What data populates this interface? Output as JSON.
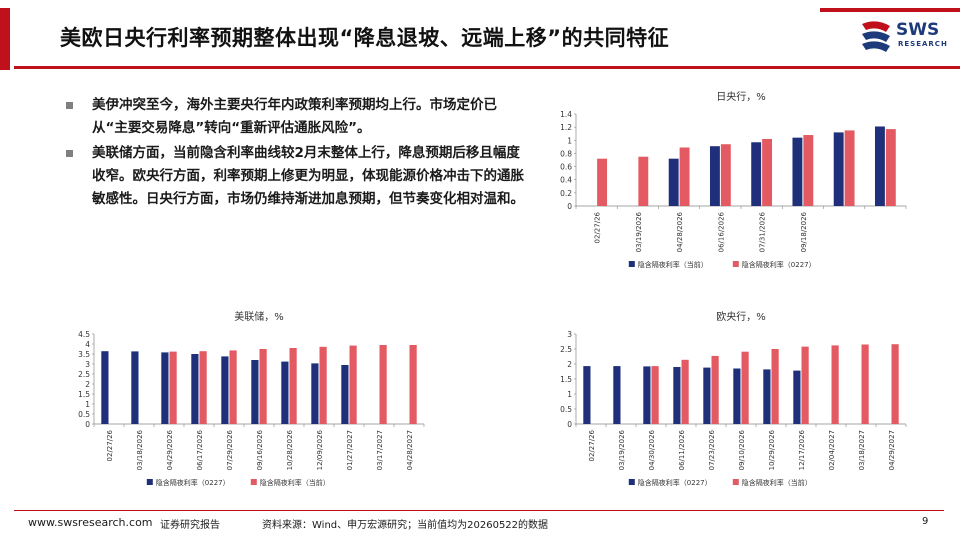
{
  "title": "美欧日央行利率预期整体出现“降息退坡、远端上移”的共同特征",
  "logo": {
    "text": "SWS",
    "sub": "RESEARCH"
  },
  "bullets": [
    "美伊冲突至今，海外主要央行年内政策利率预期均上行。市场定价已从“主要交易降息”转向“重新评估通胀风险”。",
    "美联储方面，当前隐含利率曲线较2月末整体上行，降息预期后移且幅度收窄。欧央行方面，利率预期上修更为明显，体现能源价格冲击下的通胀敏感性。日央行方面，市场仍维持渐进加息预期，但节奏变化相对温和。"
  ],
  "colors": {
    "accent_red": "#c0101c",
    "navy": "#1f2f7a",
    "pink": "#e35a62"
  },
  "chart_data": [
    {
      "id": "boj",
      "type": "bar",
      "title": "日央行，%",
      "ylim": [
        0,
        1.4
      ],
      "yticks": [
        "0",
        "0.2",
        "0.4",
        "0.6",
        "0.8",
        "1",
        "1.2",
        "1.4"
      ],
      "categories": [
        "02/27/26",
        "03/19/2026",
        "04/28/2026",
        "06/16/2026",
        "07/31/2026",
        "09/18/2026",
        "",
        ""
      ],
      "series": [
        {
          "name": "隐含隔夜利率（当前）",
          "color": "#1f2f7a",
          "values": [
            null,
            null,
            0.72,
            0.91,
            0.97,
            1.04,
            1.12,
            1.21
          ]
        },
        {
          "name": "隐含隔夜利率（0227）",
          "color": "#e35a62",
          "values": [
            0.72,
            0.75,
            0.89,
            0.94,
            1.02,
            1.08,
            1.15,
            1.17
          ]
        }
      ]
    },
    {
      "id": "fed",
      "type": "bar",
      "title": "美联储，%",
      "ylim": [
        0,
        4.5
      ],
      "yticks": [
        "0",
        "0.5",
        "1",
        "1.5",
        "2",
        "2.5",
        "3",
        "3.5",
        "4",
        "4.5"
      ],
      "categories": [
        "02/27/26",
        "03/18/2026",
        "04/29/2026",
        "06/17/2026",
        "07/29/2026",
        "09/16/2026",
        "10/28/2026",
        "12/09/2026",
        "01/27/2027",
        "03/17/2027",
        "04/28/2027"
      ],
      "series": [
        {
          "name": "隐含隔夜利率（0227）",
          "color": "#1f2f7a",
          "values": [
            3.64,
            3.63,
            3.58,
            3.5,
            3.38,
            3.2,
            3.12,
            3.03,
            2.95,
            null,
            null
          ]
        },
        {
          "name": "隐含隔夜利率（当前）",
          "color": "#e35a62",
          "values": [
            null,
            null,
            3.62,
            3.64,
            3.68,
            3.75,
            3.8,
            3.86,
            3.92,
            3.95,
            3.95
          ]
        }
      ]
    },
    {
      "id": "ecb",
      "type": "bar",
      "title": "欧央行，%",
      "ylim": [
        0,
        3
      ],
      "yticks": [
        "0",
        "0.5",
        "1",
        "1.5",
        "2",
        "2.5",
        "3"
      ],
      "categories": [
        "02/27/26",
        "03/19/2026",
        "04/30/2026",
        "06/11/2026",
        "07/23/2026",
        "09/10/2026",
        "10/29/2026",
        "12/17/2026",
        "02/04/2027",
        "03/18/2027",
        "04/29/2027"
      ],
      "series": [
        {
          "name": "隐含隔夜利率（0227）",
          "color": "#1f2f7a",
          "values": [
            1.93,
            1.93,
            1.92,
            1.9,
            1.88,
            1.85,
            1.82,
            1.78,
            null,
            null,
            null
          ]
        },
        {
          "name": "隐含隔夜利率（当前）",
          "color": "#e35a62",
          "values": [
            null,
            null,
            1.93,
            2.14,
            2.27,
            2.41,
            2.5,
            2.58,
            2.62,
            2.65,
            2.66
          ]
        }
      ]
    }
  ],
  "footer": {
    "url": "www.swsresearch.com",
    "report": "证券研究报告",
    "source": "资料来源：Wind、申万宏源研究；当前值均为20260522的数据",
    "page": "9"
  }
}
